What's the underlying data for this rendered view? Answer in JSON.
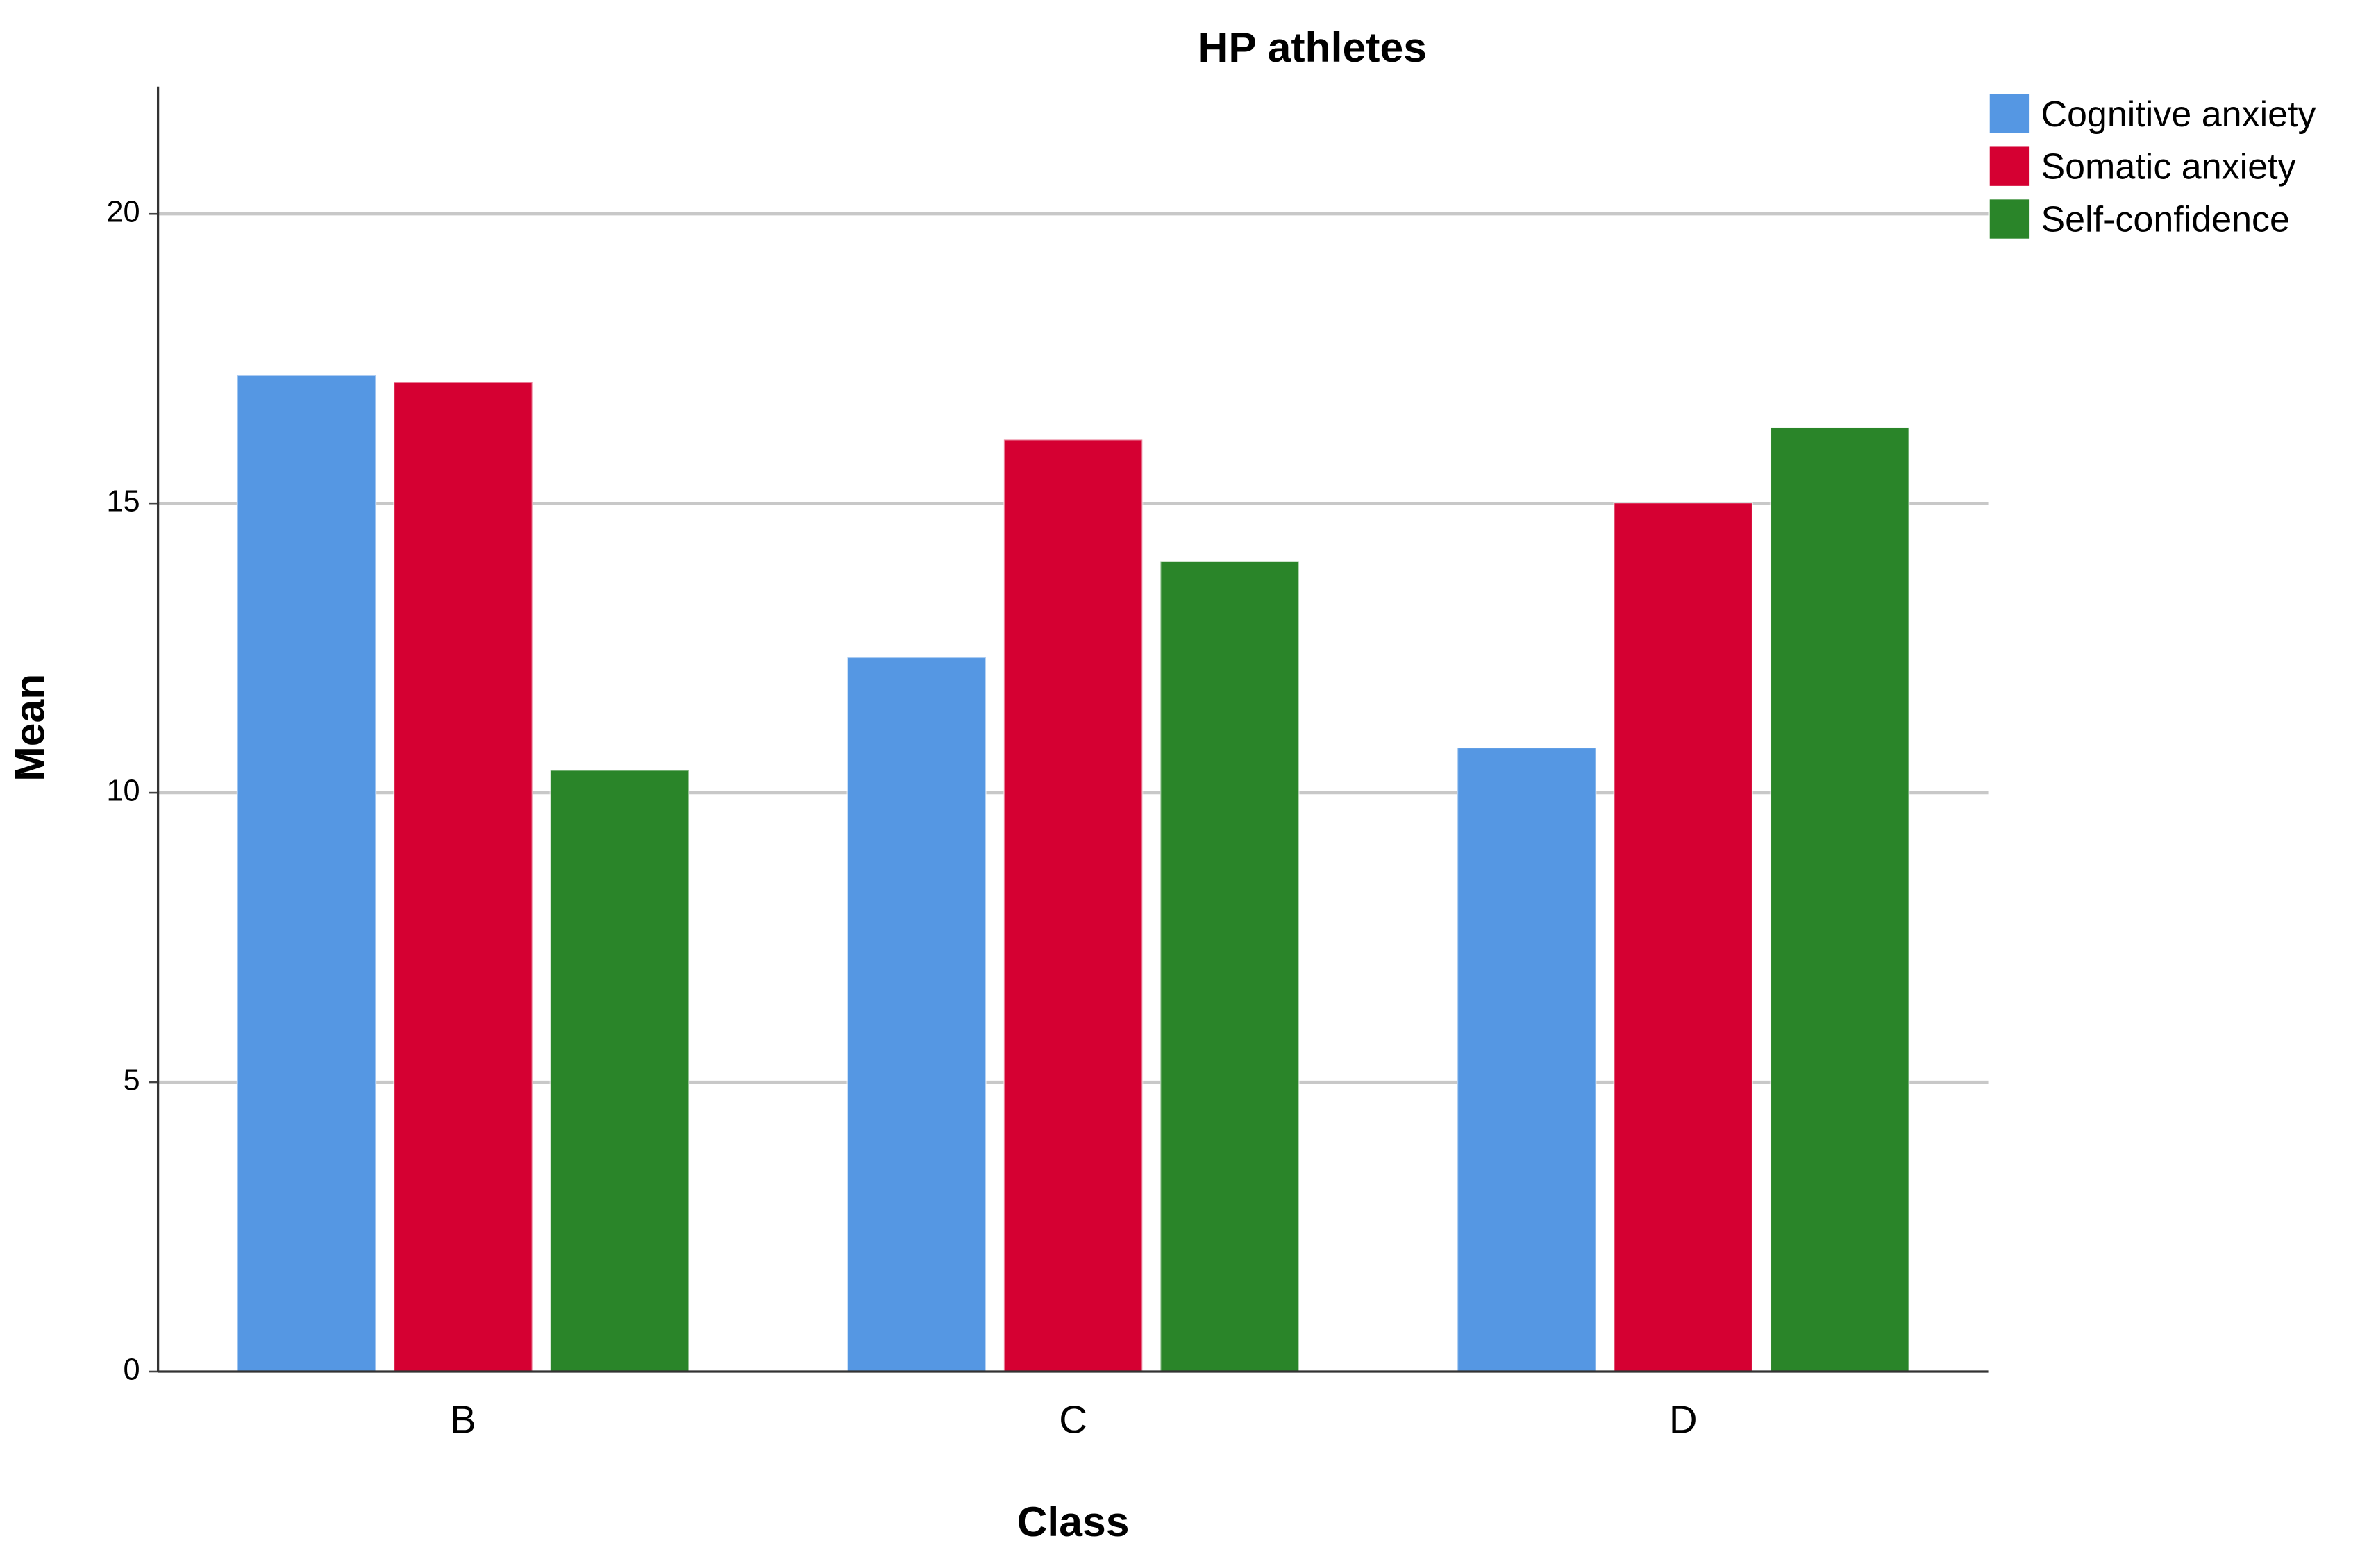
{
  "chart_data": {
    "type": "bar",
    "title": "HP athletes",
    "x_label": "Class",
    "y_label": "Mean",
    "categories": [
      "B",
      "C",
      "D"
    ],
    "series": [
      {
        "name": "Cognitive anxiety",
        "color": "#5597e3",
        "values": [
          17.22,
          12.34,
          10.78
        ]
      },
      {
        "name": "Somatic anxiety",
        "color": "#d50032",
        "values": [
          17.09,
          16.1,
          15.01
        ]
      },
      {
        "name": "Self-confidence",
        "color": "#2a8529",
        "values": [
          10.39,
          14.0,
          16.31
        ]
      }
    ],
    "ylim": [
      0,
      22.2
    ],
    "yticks": [
      0,
      5,
      10,
      15,
      20
    ],
    "grid": true,
    "legend": "upper right"
  }
}
